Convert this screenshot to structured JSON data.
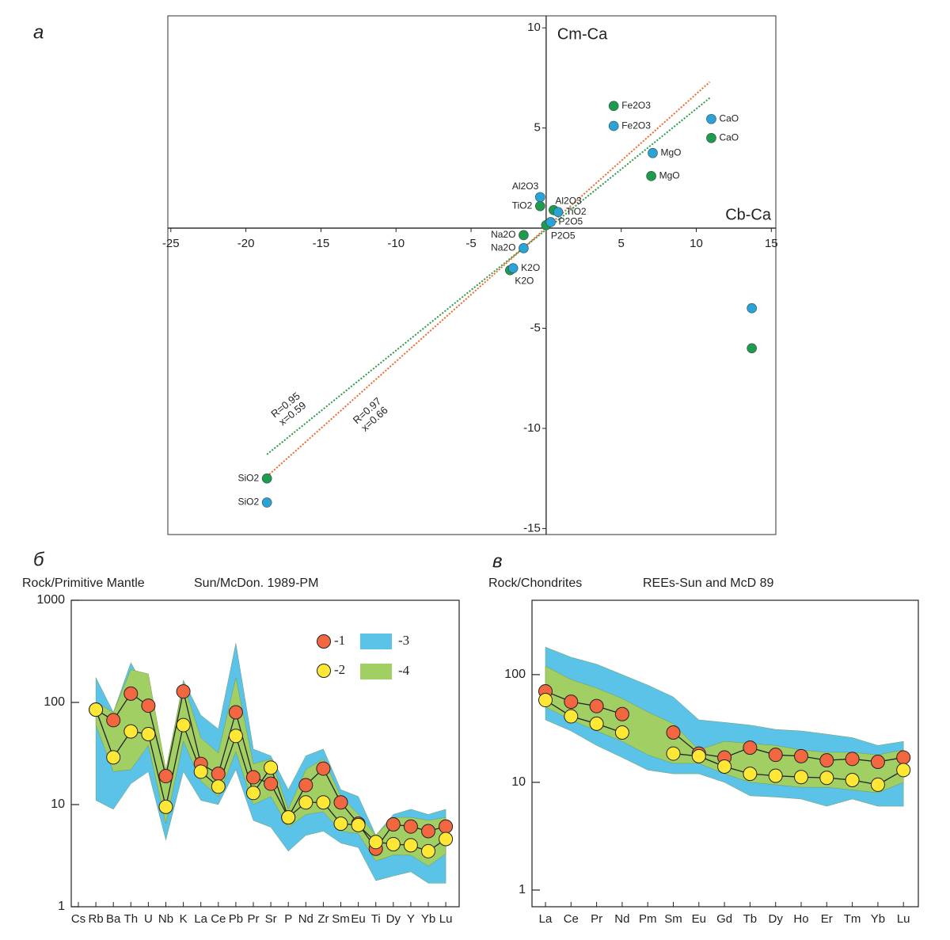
{
  "chart_data": [
    {
      "type": "scatter",
      "panel_label": "а",
      "xlabel": "Cb-Ca",
      "ylabel": "Cm-Ca",
      "xlim": [
        -25.2,
        15.3
      ],
      "ylim": [
        -15.3,
        10.6
      ],
      "xticks": [
        -25,
        -20,
        -15,
        -10,
        -5,
        5,
        10,
        15
      ],
      "yticks": [
        -15,
        -10,
        -5,
        5,
        10
      ],
      "series": [
        {
          "color": "#1e9b4b",
          "x": [
            4.5,
            11,
            7,
            0.5,
            -0.4,
            0,
            -1.5,
            -2.4,
            -18.6,
            13.7
          ],
          "y": [
            6.1,
            4.5,
            2.6,
            0.9,
            1.1,
            0.15,
            -0.35,
            -2.1,
            -12.5,
            -6.0
          ],
          "labels": [
            "Fe2O3",
            "CaO",
            "MgO",
            "Al2O3",
            "TiO2",
            "P2O5",
            "Na2O",
            "K2O",
            "SiO2",
            null
          ]
        },
        {
          "color": "#2aa3d5",
          "x": [
            4.5,
            11,
            7.1,
            -0.4,
            0.8,
            0.3,
            -1.5,
            -2.2,
            -18.6,
            13.7
          ],
          "y": [
            5.1,
            5.45,
            3.75,
            1.55,
            0.8,
            0.3,
            -1.0,
            -2.0,
            -13.7,
            -4.0
          ],
          "labels": [
            "Fe2O3",
            "CaO",
            "MgO",
            "Al2O3",
            "TiO2",
            "P2O5",
            "Na2O",
            "K2O",
            "SiO2",
            null
          ]
        }
      ],
      "trend_lines": [
        {
          "color": "#2a9a4a",
          "x": [
            -18.6,
            10.9
          ],
          "y": [
            -11.3,
            6.5
          ],
          "annotation": [
            "R=0.95",
            "x=0.59"
          ]
        },
        {
          "color": "#f0682c",
          "x": [
            -18.6,
            10.9
          ],
          "y": [
            -12.4,
            7.3
          ],
          "annotation": [
            "R=0.97",
            "x=0.66"
          ]
        }
      ]
    },
    {
      "type": "line",
      "log_scale": true,
      "panel_label": "б",
      "ylabel": "Rock/Primitive Mantle",
      "title": "Sun/McDon. 1989-PM",
      "ylim": [
        1,
        1000
      ],
      "yticks": [
        1,
        10,
        100,
        1000
      ],
      "categories": [
        "Cs",
        "Rb",
        "Ba",
        "Th",
        "U",
        "Nb",
        "K",
        "La",
        "Ce",
        "Pb",
        "Pr",
        "Sr",
        "P",
        "Nd",
        "Zr",
        "Sm",
        "Eu",
        "Ti",
        "Dy",
        "Y",
        "Yb",
        "Lu"
      ],
      "bands": [
        {
          "name": "-3",
          "color": "#5cc3e8",
          "high": [
            null,
            175,
            80,
            245,
            120,
            20,
            165,
            75,
            55,
            380,
            35,
            30,
            14,
            30,
            35,
            14,
            12,
            5,
            8,
            9,
            8,
            9
          ],
          "low": [
            null,
            11,
            9,
            16,
            21,
            4.5,
            21,
            11,
            10,
            22,
            7,
            6,
            3.5,
            5,
            5.5,
            4.2,
            3.8,
            1.8,
            2,
            2.2,
            1.7,
            1.7
          ]
        },
        {
          "name": "-4",
          "color": "#a2cf63",
          "high": [
            null,
            100,
            80,
            210,
            190,
            22,
            155,
            45,
            32,
            175,
            25,
            28,
            9,
            22,
            28,
            12,
            8,
            5,
            7.5,
            7.5,
            7,
            7.5
          ],
          "low": [
            null,
            60,
            21,
            22,
            38,
            6.5,
            42,
            17,
            12,
            33,
            10,
            12,
            6,
            8,
            8.5,
            5.5,
            5.2,
            2.8,
            3.2,
            3.2,
            2.5,
            3.3
          ]
        }
      ],
      "series": [
        {
          "name": "-1",
          "color": "#f26640",
          "values": [
            null,
            85,
            67,
            122,
            93,
            19,
            128,
            25,
            20,
            80,
            18.5,
            16,
            7.5,
            15.5,
            22.5,
            10.5,
            6.5,
            3.7,
            6.4,
            6.1,
            5.5,
            6.1
          ]
        },
        {
          "name": "-2",
          "color": "#ffe835",
          "values": [
            null,
            85,
            29,
            52,
            49,
            9.5,
            60,
            21,
            15,
            47,
            13,
            23,
            7.5,
            10.5,
            10.5,
            6.5,
            6.3,
            4.3,
            4.1,
            4.0,
            3.5,
            4.6
          ]
        }
      ]
    },
    {
      "type": "line",
      "log_scale": true,
      "panel_label": "в",
      "ylabel": "Rock/Chondrites",
      "title": "REEs-Sun and McD 89",
      "ylim": [
        0.7,
        490
      ],
      "yticks": [
        1,
        10,
        100
      ],
      "categories": [
        "La",
        "Ce",
        "Pr",
        "Nd",
        "Pm",
        "Sm",
        "Eu",
        "Gd",
        "Tb",
        "Dy",
        "Ho",
        "Er",
        "Tm",
        "Yb",
        "Lu"
      ],
      "bands": [
        {
          "color": "#5cc3e8",
          "high": [
            180,
            145,
            125,
            100,
            80,
            62,
            38,
            36,
            34,
            31,
            30,
            28,
            26,
            22,
            24
          ],
          "low": [
            38,
            30,
            22,
            17,
            13,
            12,
            12,
            10,
            7.5,
            7.3,
            7,
            6,
            7,
            6,
            6
          ]
        },
        {
          "color": "#a2cf63",
          "high": [
            120,
            90,
            75,
            60,
            45,
            35,
            20,
            24,
            23,
            22,
            20,
            19,
            19,
            18,
            20
          ],
          "low": [
            50,
            38,
            30,
            24,
            18,
            15,
            15,
            12,
            10,
            9.5,
            9,
            9,
            8.5,
            8,
            10
          ]
        }
      ],
      "series": [
        {
          "color": "#f26640",
          "values": [
            70,
            56,
            51,
            43,
            null,
            29,
            18.5,
            17,
            21,
            18,
            17.5,
            16,
            16.5,
            15.5,
            17
          ]
        },
        {
          "color": "#ffe835",
          "values": [
            58,
            41,
            35,
            29,
            null,
            18.5,
            17.5,
            14,
            12,
            11.5,
            11.2,
            11,
            10.5,
            9.5,
            13
          ]
        }
      ]
    }
  ]
}
